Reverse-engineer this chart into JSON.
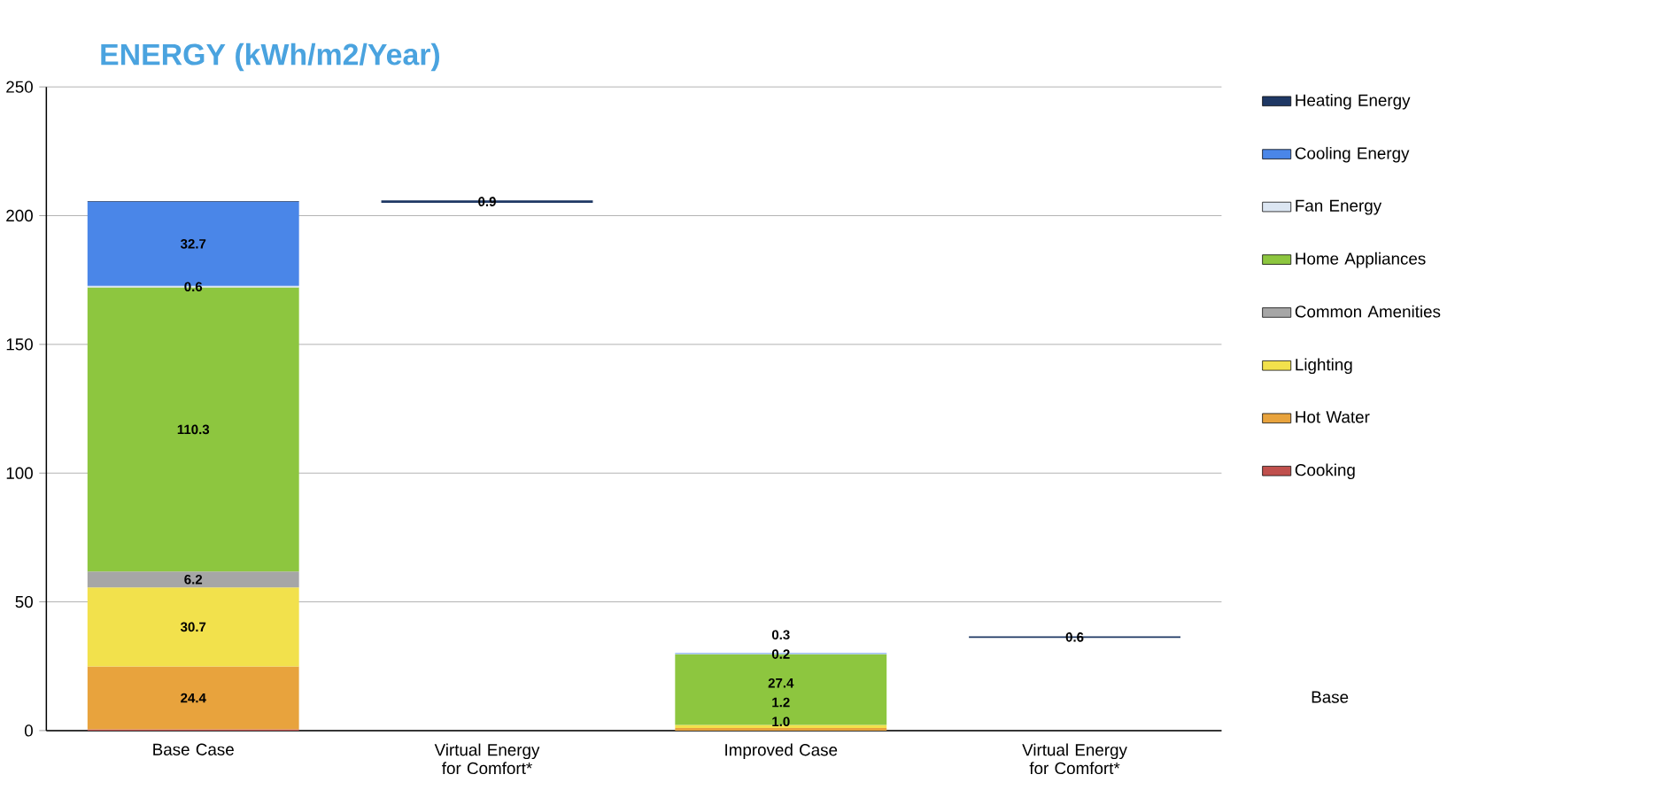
{
  "chart_data": {
    "type": "bar",
    "stacked": true,
    "title": "ENERGY (kWh/m2/Year)",
    "categories": [
      "Base Case",
      "Virtual Energy for Comfort*",
      "Improved Case",
      "Virtual Energy for Comfort*"
    ],
    "series": [
      {
        "name": "Cooking",
        "color": "#c0504d",
        "values": [
          0.5,
          null,
          null,
          null
        ]
      },
      {
        "name": "Hot Water",
        "color": "#e8a33d",
        "values": [
          24.4,
          null,
          1.0,
          null
        ],
        "value_labels": [
          "24.4",
          null,
          "1.0",
          null
        ]
      },
      {
        "name": "Lighting",
        "color": "#f2e14c",
        "values": [
          30.7,
          null,
          1.2,
          null
        ],
        "value_labels": [
          "30.7",
          null,
          "1.2",
          null
        ]
      },
      {
        "name": "Common Amenities",
        "color": "#a6a6a6",
        "values": [
          6.2,
          null,
          null,
          null
        ],
        "value_labels": [
          "6.2",
          null,
          null,
          null
        ]
      },
      {
        "name": "Home Appliances",
        "color": "#8dc63f",
        "values": [
          110.3,
          null,
          27.4,
          null
        ],
        "value_labels": [
          "110.3",
          null,
          "27.4",
          null
        ]
      },
      {
        "name": "Fan Energy",
        "color": "#dce6f2",
        "values": [
          0.6,
          null,
          0.2,
          null
        ],
        "value_labels": [
          "0.6",
          null,
          "0.2",
          null
        ]
      },
      {
        "name": "Cooling Energy",
        "color": "#4a86e8",
        "values": [
          32.7,
          null,
          0.3,
          null
        ],
        "value_labels": [
          "32.7",
          null,
          "0.3",
          null
        ]
      },
      {
        "name": "Heating Energy",
        "color": "#1f3864",
        "values": [
          0.3,
          0.9,
          null,
          0.6
        ],
        "base": [
          null,
          205,
          null,
          36
        ],
        "value_labels": [
          null,
          "0.9",
          null,
          "0.6"
        ]
      }
    ],
    "annotations": [
      "Base"
    ],
    "ylim": [
      0,
      250
    ],
    "yticks": [
      0,
      50,
      100,
      150,
      200,
      250
    ],
    "grid": "y",
    "legend": "right"
  }
}
